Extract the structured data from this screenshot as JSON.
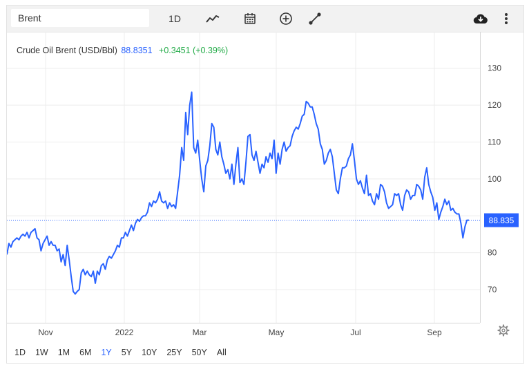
{
  "toolbar": {
    "search_value": "Brent",
    "interval_label": "1D",
    "icons": [
      "line-chart-icon",
      "calendar-icon",
      "add-circle-icon",
      "draw-line-icon",
      "cloud-download-icon",
      "more-vert-icon"
    ]
  },
  "legend": {
    "name": "Crude Oil Brent (USD/Bbl)",
    "price": "88.8351",
    "change": "+0.3451 (+0.39%)"
  },
  "colors": {
    "line": "#2962ff",
    "change_positive": "#22ab47",
    "grid": "#ececec",
    "last_price_bg": "#2962ff"
  },
  "ranges": [
    "1D",
    "1W",
    "1M",
    "6M",
    "1Y",
    "5Y",
    "10Y",
    "25Y",
    "50Y",
    "All"
  ],
  "active_range": "1Y",
  "chart_data": {
    "type": "line",
    "series": [
      {
        "values": [
          79.5,
          82.5,
          81.5,
          83.0,
          83.5,
          84.0,
          83.5,
          84.5,
          85.0,
          84.5,
          85.5,
          84.0,
          85.5,
          86.0,
          86.5,
          84.0,
          83.5,
          80.5,
          82.5,
          83.5,
          84.5,
          82.0,
          83.0,
          82.0,
          82.0,
          80.5,
          81.0,
          77.5,
          79.5,
          76.5,
          82.0,
          78.0,
          73.5,
          69.5,
          68.8,
          69.5,
          70.0,
          74.5,
          75.5,
          74.0,
          75.0,
          74.0,
          73.5,
          75.0,
          71.7,
          75.0,
          74.0,
          76.5,
          77.0,
          75.5,
          78.0,
          79.0,
          78.5,
          79.5,
          80.5,
          82.0,
          81.5,
          84.0,
          84.0,
          85.5,
          84.5,
          86.0,
          87.5,
          86.0,
          88.0,
          89.0,
          88.5,
          89.5,
          90.0,
          90.0,
          91.0,
          93.5,
          92.5,
          94.0,
          93.5,
          94.5,
          96.5,
          94.0,
          93.5,
          94.0,
          92.0,
          93.5,
          92.5,
          93.0,
          92.0,
          96.5,
          101.0,
          108.5,
          105.0,
          118.0,
          112.0,
          120.0,
          123.5,
          108.5,
          107.0,
          110.5,
          105.0,
          100.0,
          96.5,
          103.5,
          105.0,
          109.0,
          115.0,
          114.0,
          108.0,
          106.5,
          110.0,
          106.0,
          104.0,
          101.5,
          102.5,
          100.0,
          104.0,
          98.5,
          104.0,
          108.5,
          99.0,
          100.0,
          98.5,
          104.5,
          111.5,
          112.0,
          106.5,
          105.0,
          107.5,
          104.5,
          101.5,
          104.0,
          103.0,
          106.0,
          104.5,
          107.0,
          105.5,
          110.5,
          101.5,
          107.0,
          104.0,
          108.0,
          110.0,
          107.5,
          108.5,
          109.0,
          111.5,
          113.0,
          114.0,
          113.5,
          115.0,
          117.0,
          117.5,
          121.0,
          120.5,
          119.5,
          119.5,
          117.5,
          115.0,
          113.5,
          109.5,
          108.0,
          104.0,
          105.0,
          107.0,
          108.0,
          106.0,
          101.5,
          97.0,
          96.0,
          100.0,
          103.0,
          103.0,
          103.5,
          105.5,
          106.5,
          109.5,
          105.0,
          100.0,
          98.5,
          99.5,
          97.5,
          96.0,
          101.0,
          95.5,
          96.0,
          94.0,
          93.0,
          96.0,
          94.5,
          98.5,
          98.0,
          96.5,
          93.5,
          92.0,
          92.5,
          93.0,
          96.0,
          95.5,
          96.0,
          93.0,
          91.5,
          95.5,
          97.0,
          96.5,
          94.5,
          95.5,
          95.5,
          98.5,
          98.0,
          97.0,
          94.5,
          100.5,
          103.0,
          98.5,
          96.5,
          95.0,
          91.5,
          93.5,
          89.0,
          91.0,
          92.5,
          94.5,
          93.0,
          94.0,
          91.5,
          92.0,
          91.0,
          90.5,
          90.5,
          88.0,
          84.0,
          87.0,
          88.8,
          88.8
        ]
      }
    ],
    "x_tick_labels": [
      "Nov",
      "2022",
      "Mar",
      "May",
      "Jul",
      "Sep"
    ],
    "y_ticks": [
      70,
      80,
      90,
      100,
      110,
      120,
      130
    ],
    "y_tick_labels": [
      "70",
      "80",
      "100",
      "110",
      "120",
      "130"
    ],
    "ylim": [
      61,
      138
    ],
    "last_value_label": "88.835",
    "grid": true,
    "y_axis_side": "right"
  }
}
